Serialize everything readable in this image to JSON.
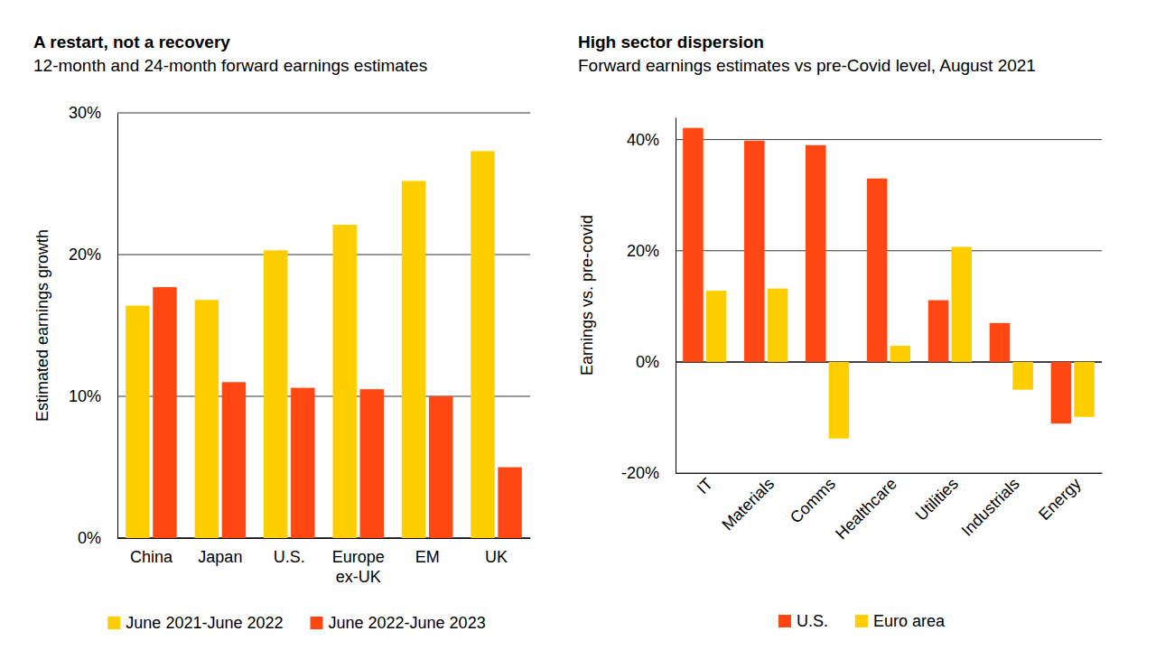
{
  "chart_data": [
    {
      "type": "bar",
      "title": "A restart, not a recovery",
      "subtitle": "12-month and 24-month forward earnings estimates",
      "ylabel": "Estimated earnings growth",
      "categories": [
        "China",
        "Japan",
        "U.S.",
        "Europe ex-UK",
        "EM",
        "UK"
      ],
      "series": [
        {
          "name": "June 2021-June 2022",
          "color": "#FFCE00",
          "values": [
            16.4,
            16.8,
            20.3,
            22.1,
            25.2,
            27.3
          ]
        },
        {
          "name": "June 2022-June 2023",
          "color": "#FF4713",
          "values": [
            17.7,
            11.0,
            10.6,
            10.5,
            10.0,
            5.0
          ]
        }
      ],
      "ylim": [
        0,
        30
      ],
      "yticks": [
        {
          "value": 0,
          "label": "0%"
        },
        {
          "value": 10,
          "label": "10%"
        },
        {
          "value": 20,
          "label": "20%"
        },
        {
          "value": 30,
          "label": "30%"
        }
      ],
      "grid": true,
      "legend": "bottom"
    },
    {
      "type": "bar",
      "title": "High sector dispersion",
      "subtitle": "Forward earnings estimates vs pre-Covid level, August 2021",
      "ylabel": "Earnings vs. pre-covid",
      "categories": [
        "IT",
        "Materials",
        "Comms",
        "Healthcare",
        "Utilities",
        "Industrials",
        "Energy"
      ],
      "series": [
        {
          "name": "U.S.",
          "color": "#FF4713",
          "values": [
            42.1,
            39.8,
            39.0,
            33.0,
            11.1,
            7.0,
            -11.1
          ]
        },
        {
          "name": "Euro area",
          "color": "#FFCE00",
          "values": [
            12.8,
            13.2,
            -13.8,
            2.9,
            20.7,
            -5.0,
            -9.9
          ]
        }
      ],
      "ylim": [
        -20,
        44
      ],
      "yticks": [
        {
          "value": -20,
          "label": "-20%"
        },
        {
          "value": 0,
          "label": "0%"
        },
        {
          "value": 20,
          "label": "20%"
        },
        {
          "value": 40,
          "label": "40%"
        }
      ],
      "grid": true,
      "legend": "bottom"
    }
  ]
}
